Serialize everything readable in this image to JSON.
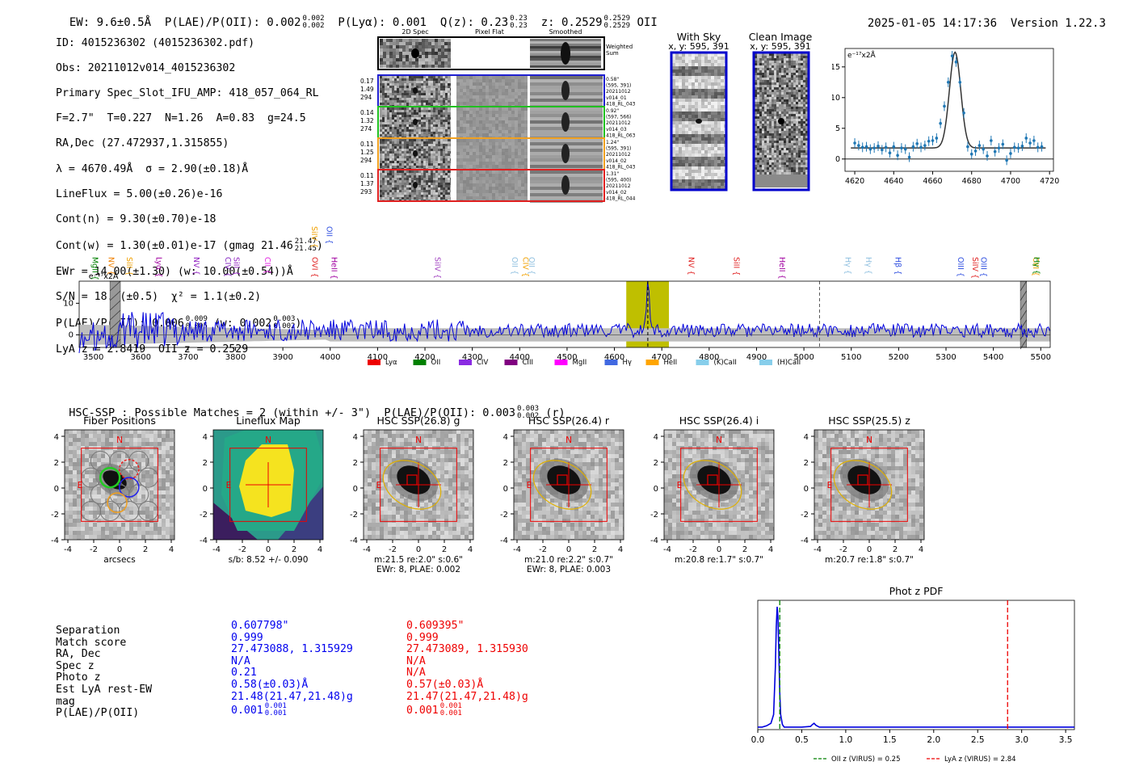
{
  "header": {
    "ew": "EW: 9.6±0.5Å",
    "plae_label": "P(LAE)/P(OII): 0.002",
    "plae_hi": "0.002",
    "plae_lo": "0.002",
    "plya": "P(Lyα): 0.001",
    "qz_label": "Q(z): 0.23",
    "qz_hi": "0.23",
    "qz_lo": "0.23",
    "z_label": "z: 0.2529",
    "z_hi": "0.2529",
    "z_lo": "0.2529",
    "z_line": "OII",
    "datetime": "2025-01-05 14:17:36",
    "version": "Version 1.22.3"
  },
  "info": {
    "id": "ID: 4015236302 (4015236302.pdf)",
    "obs": "Obs: 20211012v014_4015236302",
    "primary": "Primary Spec_Slot_IFU_AMP: 418_057_064_RL",
    "fiber": "F=2.7\"  T=0.227  N=1.26  A=0.83  g=24.5",
    "radec": "RA,Dec (27.472937,1.315855)",
    "lambda": "λ = 4670.49Å  σ = 2.90(±0.18)Å",
    "lineflux": "LineFlux = 5.00(±0.26)e-16",
    "contn": "Cont(n) = 9.30(±0.70)e-18",
    "contw": "Cont(w) = 1.30(±0.01)e-17 (gmag 21.46",
    "contw_hi": "21.47",
    "contw_lo": "21.45",
    "ewr": "EWr = 14.00(±1.30) (w: 10.00(±0.54))Å",
    "sn": "S/N = 18.8(±0.5)  χ² = 1.1(±0.2)",
    "plae": "P(LAE)/P(OII): 0.006",
    "plae_hi": "0.009",
    "plae_lo": "0.005",
    "plae_w": "(w: 0.002",
    "plae_w_hi": "0.003",
    "plae_w_lo": "0.002",
    "lya": "LyA z = 2.8419  OII z = 0.2529"
  },
  "cutouts": {
    "col_headers": [
      "2D Spec",
      "Pixel Flat",
      "Smoothed"
    ],
    "weighted_sum": "Weighted Sum",
    "rows": [
      {
        "left": [
          "0.17",
          "1.49",
          "294"
        ],
        "right": [
          "0.58\"",
          "(595, 391)",
          "20211012",
          "v014_01",
          "418_RL_043"
        ],
        "color": "#1f1fd0"
      },
      {
        "left": [
          "0.14",
          "1.32",
          "274"
        ],
        "right": [
          "0.92\"",
          "(597, 566)",
          "20211012",
          "v014_03",
          "418_RL_063"
        ],
        "color": "#20c020"
      },
      {
        "left": [
          "0.11",
          "1.25",
          "294"
        ],
        "right": [
          "1.24\"",
          "(595, 391)",
          "20211012",
          "v014_02",
          "418_RL_043"
        ],
        "color": "#f0a020"
      },
      {
        "left": [
          "0.11",
          "1.37",
          "293"
        ],
        "right": [
          "1.31\"",
          "(595, 400)",
          "20211012",
          "v014_02",
          "418_RL_044"
        ],
        "color": "#e02020"
      }
    ]
  },
  "sky": {
    "with_sky": "With Sky",
    "with_sky_xy": "x, y: 595, 391",
    "clean": "Clean Image",
    "clean_xy": "x, y: 595, 391"
  },
  "colors": {
    "blue": "#0000ee",
    "red": "#ee0000",
    "olive": "#c8c800",
    "accent": "#1f77b4"
  },
  "chart_data": [
    {
      "type": "scatter",
      "title": "",
      "ylabel": "e⁻¹⁷x2Å",
      "xlim": [
        4615,
        4722
      ],
      "ylim": [
        -2,
        18
      ],
      "xticks": [
        4620,
        4640,
        4660,
        4680,
        4700,
        4720
      ],
      "yticks": [
        0,
        5,
        10,
        15
      ],
      "x": [
        4620,
        4622,
        4624,
        4626,
        4628,
        4630,
        4632,
        4634,
        4636,
        4638,
        4640,
        4642,
        4644,
        4646,
        4648,
        4650,
        4652,
        4654,
        4656,
        4658,
        4660,
        4662,
        4664,
        4666,
        4668,
        4670,
        4672,
        4674,
        4676,
        4678,
        4680,
        4682,
        4684,
        4686,
        4688,
        4690,
        4692,
        4694,
        4696,
        4698,
        4700,
        4702,
        4704,
        4706,
        4708,
        4710,
        4712,
        4714,
        4716
      ],
      "y": [
        2.6,
        2.2,
        1.9,
        2.0,
        1.6,
        1.8,
        2.1,
        1.5,
        1.9,
        1.0,
        2.0,
        0.6,
        1.8,
        1.6,
        0.3,
        2.0,
        2.5,
        1.9,
        2.2,
        2.9,
        3.0,
        3.4,
        5.8,
        8.6,
        12.5,
        16.8,
        15.8,
        12.5,
        7.5,
        2.0,
        0.8,
        1.3,
        2.2,
        1.6,
        0.5,
        3.0,
        1.2,
        1.8,
        2.4,
        -0.2,
        0.9,
        1.9,
        1.8,
        2.1,
        3.4,
        2.6,
        3.0,
        1.9,
        2.0
      ],
      "fit": {
        "center": 4671.5,
        "sigma": 2.9,
        "amp": 15.6,
        "base": 1.8
      }
    },
    {
      "type": "line",
      "xlim": [
        3470,
        5520
      ],
      "ylim": [
        -4,
        17
      ],
      "xticks": [
        3500,
        3600,
        3700,
        3800,
        3900,
        4000,
        4100,
        4200,
        4300,
        4400,
        4500,
        4600,
        4700,
        4800,
        4900,
        5000,
        5100,
        5200,
        5300,
        5400,
        5500
      ],
      "yticks": [
        0,
        10
      ],
      "ylabel": "e⁻¹⁷x2Å",
      "highlight": [
        4625,
        4715
      ],
      "line_center": 4670.5,
      "dashed_at": 5033,
      "hatched": [
        3535,
        3557,
        5457,
        5470
      ],
      "lines": [
        {
          "name": "MgII",
          "x": 3498,
          "color": "#008000"
        },
        {
          "name": "NV",
          "x": 3532,
          "color": "#f08000"
        },
        {
          "name": "SiII",
          "x": 3571,
          "color": "#f0a000"
        },
        {
          "name": "Lyα",
          "x": 3633,
          "color": "#a000a0"
        },
        {
          "name": "NV",
          "x": 3712,
          "color": "#9020c0"
        },
        {
          "name": "CIV",
          "x": 3779,
          "color": "#8020c0"
        },
        {
          "name": "SiII",
          "x": 3797,
          "color": "#9020c0"
        },
        {
          "name": "CII",
          "x": 3862,
          "color": "#e020e0"
        },
        {
          "name": "SiIV",
          "x": 3961,
          "color": "#f0a000"
        },
        {
          "name": "OVI",
          "x": 3962,
          "color": "#e02020"
        },
        {
          "name": "OII",
          "x": 3993,
          "color": "#3050e0"
        },
        {
          "name": "HeII",
          "x": 4003,
          "color": "#a000a0"
        },
        {
          "name": "SiIV",
          "x": 4221,
          "color": "#a040c0"
        },
        {
          "name": "OII",
          "x": 4384,
          "color": "#90c0e0"
        },
        {
          "name": "CIV",
          "x": 4407,
          "color": "#f0a000"
        },
        {
          "name": "OII",
          "x": 4420,
          "color": "#90c0e0"
        },
        {
          "name": "NV",
          "x": 4757,
          "color": "#e02020"
        },
        {
          "name": "SiII",
          "x": 4852,
          "color": "#e02020"
        },
        {
          "name": "HeII",
          "x": 4949,
          "color": "#a000a0"
        },
        {
          "name": "Hγ",
          "x": 5088,
          "color": "#90c0e0"
        },
        {
          "name": "Hγ",
          "x": 5131,
          "color": "#90c0e0"
        },
        {
          "name": "Hβ",
          "x": 5193,
          "color": "#3050e0"
        },
        {
          "name": "OIII",
          "x": 5326,
          "color": "#3050e0"
        },
        {
          "name": "SiIV",
          "x": 5356,
          "color": "#e02020"
        },
        {
          "name": "OIII",
          "x": 5374,
          "color": "#3050e0"
        },
        {
          "name": "CIII",
          "x": 5484,
          "color": "#f0a000"
        },
        {
          "name": "Hγ",
          "x": 5486,
          "color": "#008000"
        }
      ],
      "legend": [
        {
          "name": "Lyα",
          "color": "#ee0000"
        },
        {
          "name": "OII",
          "color": "#008000"
        },
        {
          "name": "CIV",
          "color": "#8a2be2"
        },
        {
          "name": "CIII",
          "color": "#800080"
        },
        {
          "name": "MgII",
          "color": "#ff00ff"
        },
        {
          "name": "Hγ",
          "color": "#4169e1"
        },
        {
          "name": "HeII",
          "color": "#ffa500"
        },
        {
          "name": "(K)CaII",
          "color": "#87ceeb"
        },
        {
          "name": "(H)CaII",
          "color": "#87ceeb"
        }
      ]
    },
    {
      "type": "line",
      "title": "Phot z PDF",
      "xlim": [
        0,
        3.6
      ],
      "ylim": [
        0,
        1
      ],
      "xticks": [
        0.0,
        0.5,
        1.0,
        1.5,
        2.0,
        2.5,
        3.0,
        3.5
      ],
      "x": [
        0,
        0.05,
        0.1,
        0.15,
        0.18,
        0.2,
        0.21,
        0.22,
        0.23,
        0.24,
        0.25,
        0.26,
        0.28,
        0.3,
        0.35,
        0.4,
        0.5,
        0.6,
        0.62,
        0.64,
        0.66,
        0.7,
        0.8,
        1.0,
        1.5,
        2.0,
        2.5,
        3.0,
        3.6
      ],
      "y": [
        0.02,
        0.02,
        0.03,
        0.05,
        0.12,
        0.5,
        0.82,
        0.98,
        0.9,
        0.6,
        0.3,
        0.12,
        0.04,
        0.02,
        0.02,
        0.02,
        0.02,
        0.025,
        0.04,
        0.05,
        0.035,
        0.02,
        0.02,
        0.02,
        0.02,
        0.02,
        0.02,
        0.02,
        0.02
      ],
      "vlines": [
        {
          "x": 0.25,
          "color": "#008000",
          "label": "OII z (VIRUS) = 0.25"
        },
        {
          "x": 2.84,
          "color": "#ee0000",
          "label": "LyA z (VIRUS) = 2.84"
        }
      ]
    }
  ],
  "hsc": {
    "title_prefix": "HSC-SSP : Possible Matches = 2 (within +/- 3\")  P(LAE)/P(OII): 0.003",
    "title_hi": "0.003",
    "title_lo": "0.002",
    "title_suffix": "(r)",
    "panels": [
      {
        "title": "Fiber Positions",
        "cap1": "arcsecs",
        "cap2": ""
      },
      {
        "title": "Lineflux Map",
        "cap1": "s/b: 8.52 +/- 0.090",
        "cap2": ""
      },
      {
        "title": "HSC SSP(26.8) g",
        "cap1": "m:21.5  re:2.0\"  s:0.6\"",
        "cap2": "EWr: 8, PLAE: 0.002"
      },
      {
        "title": "HSC SSP(26.4) r",
        "cap1": "m:21.0  re:2.2\"  s:0.7\"",
        "cap2": "EWr: 8, PLAE: 0.003"
      },
      {
        "title": "HSC SSP(26.4) i",
        "cap1": "m:20.8  re:1.7\"  s:0.7\"",
        "cap2": ""
      },
      {
        "title": "HSC SSP(25.5) z",
        "cap1": "m:20.7  re:1.8\"  s:0.7\"",
        "cap2": ""
      }
    ],
    "axis_ticks": [
      "-4",
      "-2",
      "0",
      "2",
      "4"
    ],
    "n_label": "N",
    "e_label": "E"
  },
  "matches": {
    "labels": [
      "Separation",
      "Match score",
      "RA, Dec",
      "Spec z",
      "Photo z",
      "Est LyA rest-EW",
      "mag",
      "P(LAE)/P(OII)"
    ],
    "col1": [
      "0.607798\"",
      "0.999",
      "27.473088, 1.315929",
      "N/A",
      "0.21",
      "0.58(±0.03)Å",
      "21.48(21.47,21.48)g",
      "0.001"
    ],
    "col1_plae_hi": "0.001",
    "col1_plae_lo": "0.001",
    "col2": [
      "0.609395\"",
      "0.999",
      "27.473089, 1.315930",
      "N/A",
      "N/A",
      "0.57(±0.03)Å",
      "21.47(21.47,21.48)g",
      "0.001"
    ],
    "col2_plae_hi": "0.001",
    "col2_plae_lo": "0.001"
  }
}
